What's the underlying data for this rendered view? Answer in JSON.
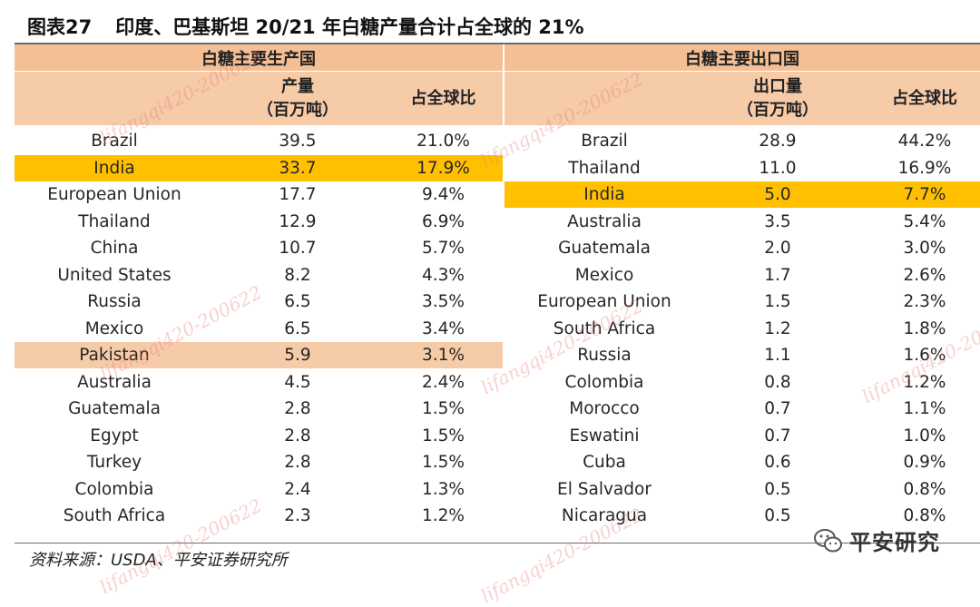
{
  "title": {
    "figure_no": "图表27",
    "text": "印度、巴基斯坦 20/21 年白糖产量合计占全球的 21%"
  },
  "left_table": {
    "group_header": "白糖主要生产国",
    "col_value_line1": "产量",
    "col_value_line2": "（百万吨）",
    "col_share": "占全球比",
    "rows": [
      {
        "country": "Brazil",
        "value": "39.5",
        "share": "21.0%",
        "hl": ""
      },
      {
        "country": "India",
        "value": "33.7",
        "share": "17.9%",
        "hl": "india"
      },
      {
        "country": "European Union",
        "value": "17.7",
        "share": "9.4%",
        "hl": ""
      },
      {
        "country": "Thailand",
        "value": "12.9",
        "share": "6.9%",
        "hl": ""
      },
      {
        "country": "China",
        "value": "10.7",
        "share": "5.7%",
        "hl": ""
      },
      {
        "country": "United States",
        "value": "8.2",
        "share": "4.3%",
        "hl": ""
      },
      {
        "country": "Russia",
        "value": "6.5",
        "share": "3.5%",
        "hl": ""
      },
      {
        "country": "Mexico",
        "value": "6.5",
        "share": "3.4%",
        "hl": ""
      },
      {
        "country": "Pakistan",
        "value": "5.9",
        "share": "3.1%",
        "hl": "pak"
      },
      {
        "country": "Australia",
        "value": "4.5",
        "share": "2.4%",
        "hl": ""
      },
      {
        "country": "Guatemala",
        "value": "2.8",
        "share": "1.5%",
        "hl": ""
      },
      {
        "country": "Egypt",
        "value": "2.8",
        "share": "1.5%",
        "hl": ""
      },
      {
        "country": "Turkey",
        "value": "2.8",
        "share": "1.5%",
        "hl": ""
      },
      {
        "country": "Colombia",
        "value": "2.4",
        "share": "1.3%",
        "hl": ""
      },
      {
        "country": "South Africa",
        "value": "2.3",
        "share": "1.2%",
        "hl": ""
      }
    ]
  },
  "right_table": {
    "group_header": "白糖主要出口国",
    "col_value_line1": "出口量",
    "col_value_line2": "（百万吨）",
    "col_share": "占全球比",
    "rows": [
      {
        "country": "Brazil",
        "value": "28.9",
        "share": "44.2%",
        "hl": ""
      },
      {
        "country": "Thailand",
        "value": "11.0",
        "share": "16.9%",
        "hl": ""
      },
      {
        "country": "India",
        "value": "5.0",
        "share": "7.7%",
        "hl": "india"
      },
      {
        "country": "Australia",
        "value": "3.5",
        "share": "5.4%",
        "hl": ""
      },
      {
        "country": "Guatemala",
        "value": "2.0",
        "share": "3.0%",
        "hl": ""
      },
      {
        "country": "Mexico",
        "value": "1.7",
        "share": "2.6%",
        "hl": ""
      },
      {
        "country": "European Union",
        "value": "1.5",
        "share": "2.3%",
        "hl": ""
      },
      {
        "country": "South Africa",
        "value": "1.2",
        "share": "1.8%",
        "hl": ""
      },
      {
        "country": "Russia",
        "value": "1.1",
        "share": "1.6%",
        "hl": ""
      },
      {
        "country": "Colombia",
        "value": "0.8",
        "share": "1.2%",
        "hl": ""
      },
      {
        "country": "Morocco",
        "value": "0.7",
        "share": "1.1%",
        "hl": ""
      },
      {
        "country": "Eswatini",
        "value": "0.7",
        "share": "1.0%",
        "hl": ""
      },
      {
        "country": "Cuba",
        "value": "0.6",
        "share": "0.9%",
        "hl": ""
      },
      {
        "country": "El Salvador",
        "value": "0.5",
        "share": "0.8%",
        "hl": ""
      },
      {
        "country": "Nicaragua",
        "value": "0.5",
        "share": "0.8%",
        "hl": ""
      }
    ]
  },
  "source": "资料来源：USDA、平安证券研究所",
  "logo": {
    "icon": "wechat-icon",
    "text": "平安研究"
  },
  "watermark": "lifangqi420-200622",
  "colors": {
    "header_dark": "#f4bf94",
    "header_light": "#f6cba8",
    "highlight_india": "#ffc000",
    "highlight_pakistan": "#f6cba8"
  }
}
